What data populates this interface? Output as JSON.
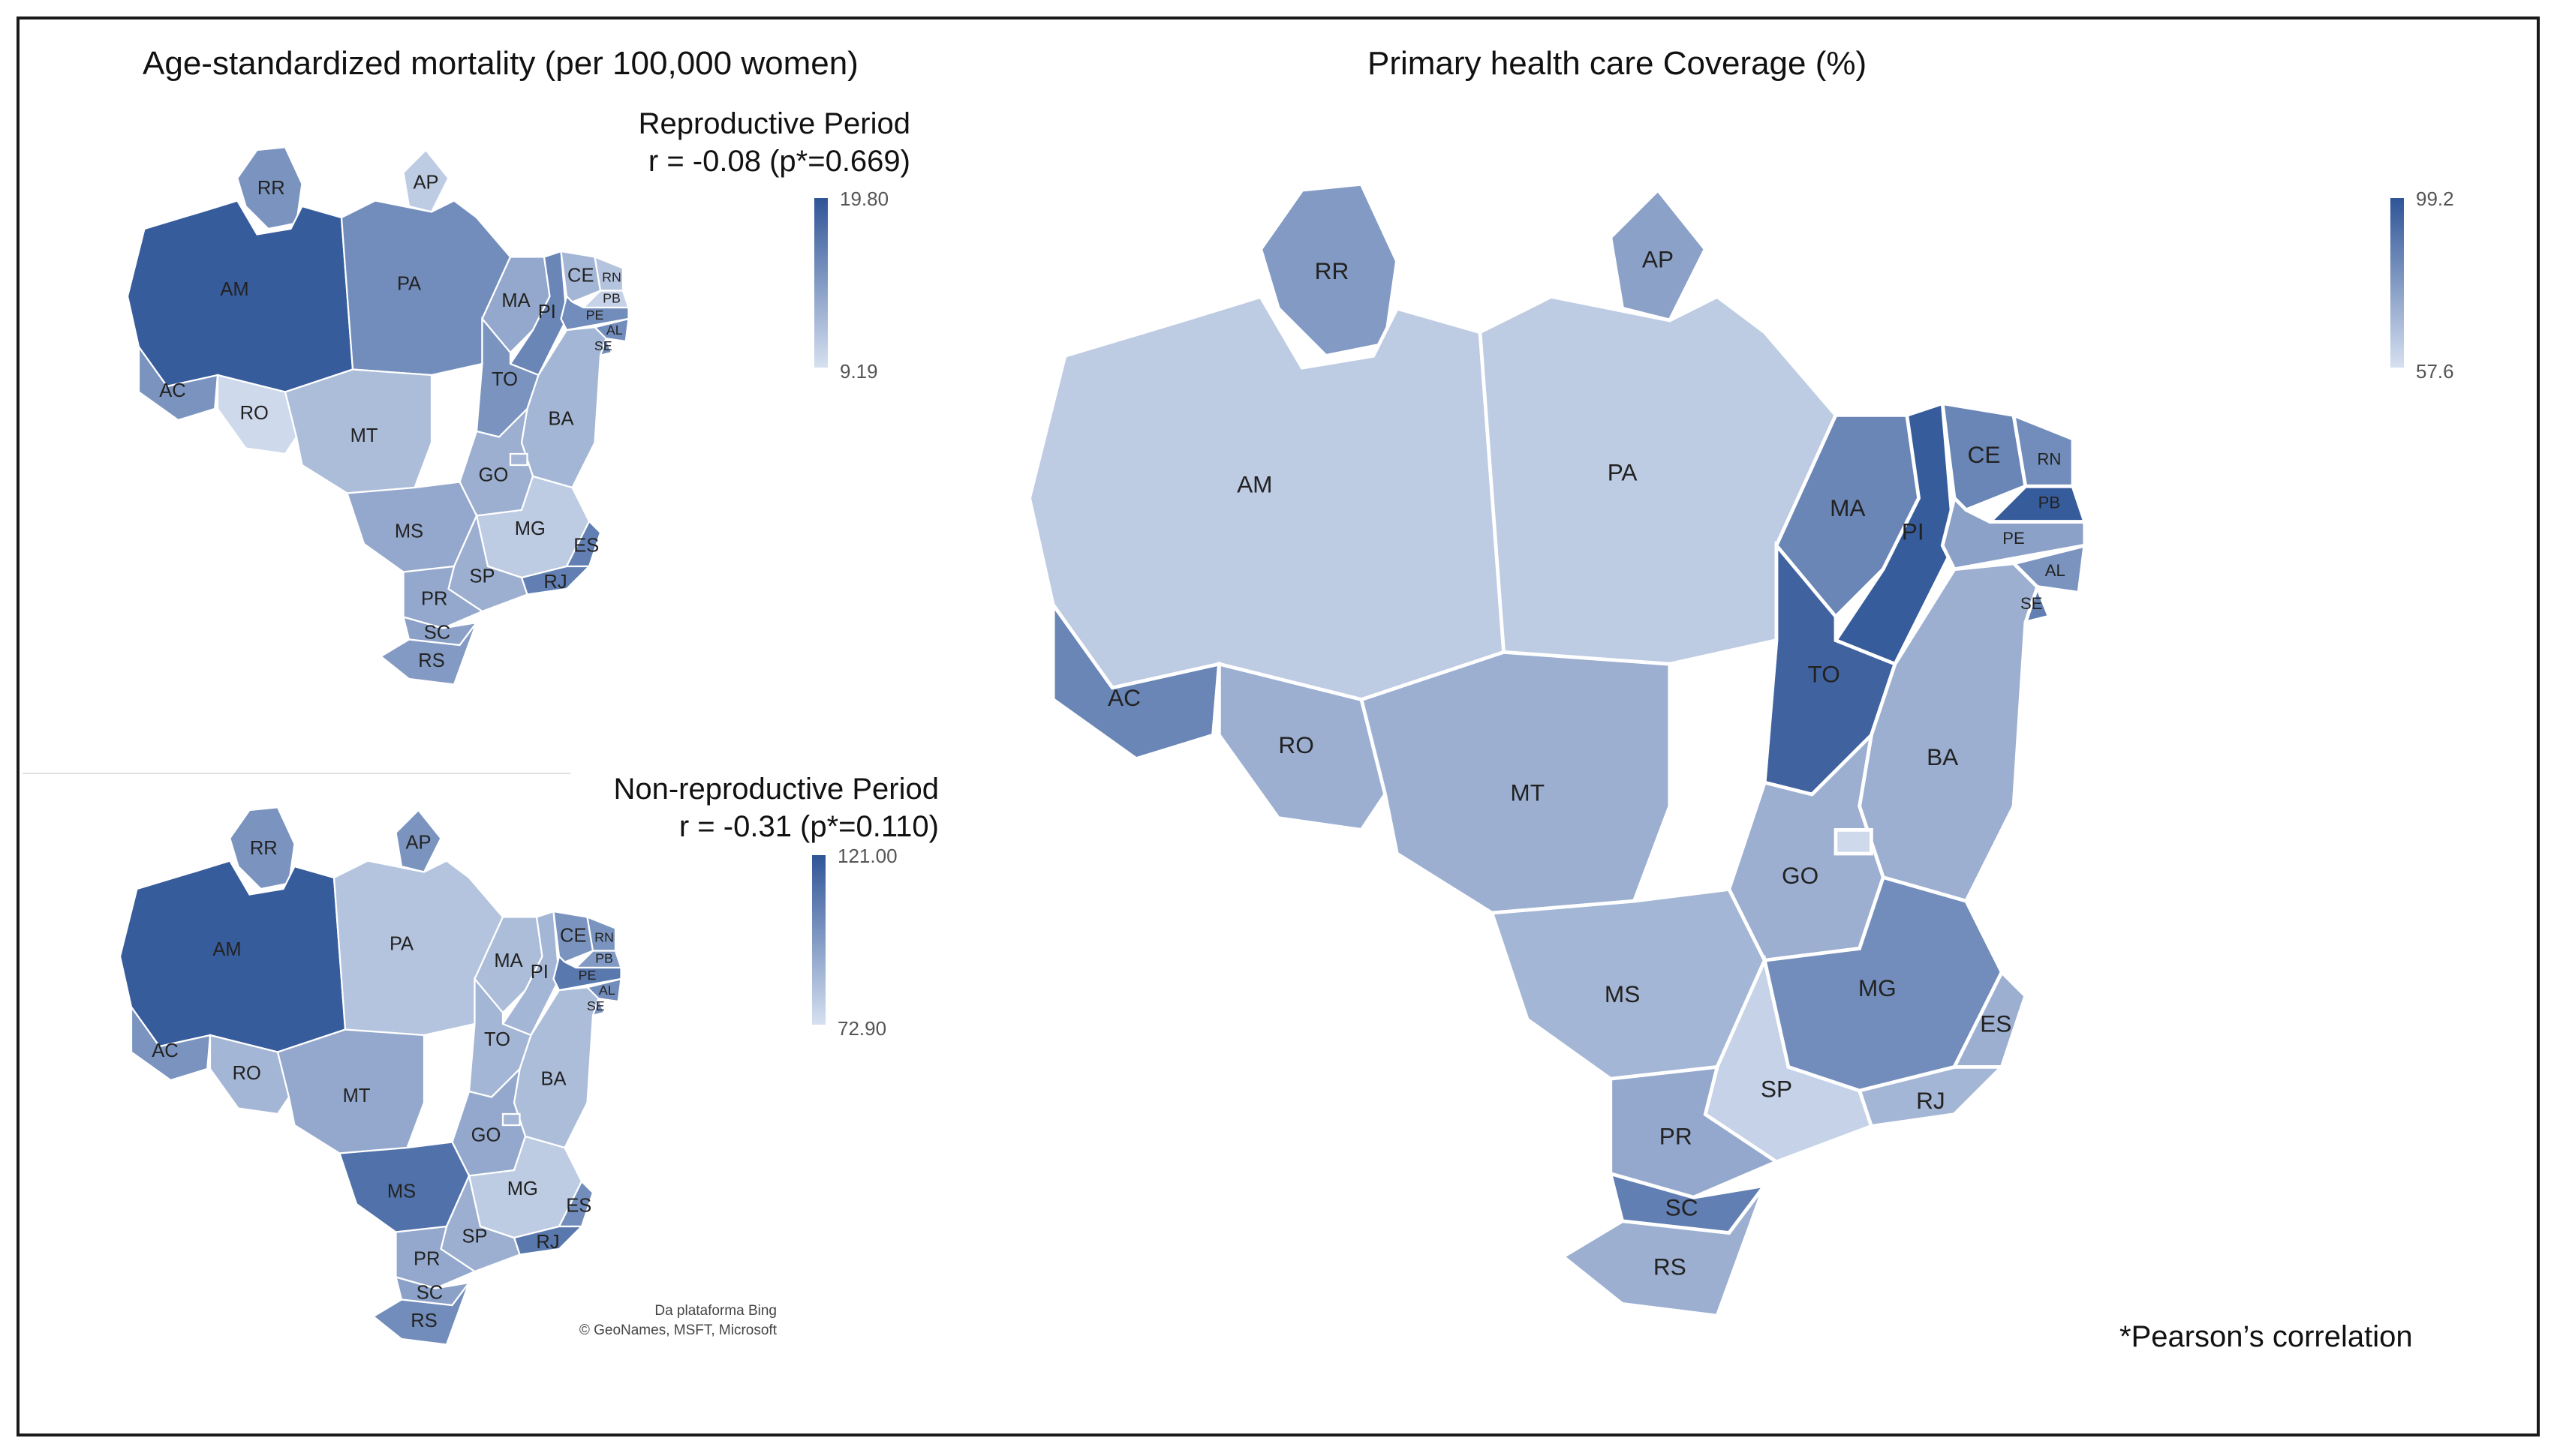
{
  "colors": {
    "light": "#d6e0f0",
    "dark": "#2f5597",
    "border": "#1a1a1a"
  },
  "mortality_title": "Age-standardized mortality (per 100,000 women)",
  "coverage_title": "Primary health care Coverage (%)",
  "reproductive": {
    "period": "Reproductive  Period",
    "stat": "r = -0.08 (p*=0.669)",
    "legend_max": "19.80",
    "legend_min": "9.19"
  },
  "nonreproductive": {
    "period": "Non-reproductive  Period",
    "stat": "r = -0.31 (p*=0.110)",
    "legend_max": "121.00",
    "legend_min": "72.90"
  },
  "coverage_legend": {
    "max": "99.2",
    "min": "57.6"
  },
  "footnote": "*Pearson’s correlation",
  "credit": {
    "line1": "Da plataforma Bing",
    "line2": "© GeoNames, MSFT, Microsoft"
  },
  "maps": {
    "reproductive": {
      "AM": 0.95,
      "RR": 0.55,
      "AP": 0.15,
      "PA": 0.6,
      "AC": 0.55,
      "RO": 0.05,
      "MT": 0.25,
      "TO": 0.55,
      "MA": 0.4,
      "PI": 0.65,
      "CE": 0.3,
      "RN": 0.2,
      "PB": 0.1,
      "PE": 0.6,
      "AL": 0.6,
      "SE": 0.6,
      "BA": 0.3,
      "GO": 0.35,
      "DF": 0.3,
      "MG": 0.15,
      "ES": 0.7,
      "RJ": 0.7,
      "SP": 0.35,
      "MS": 0.4,
      "PR": 0.4,
      "SC": 0.45,
      "RS": 0.5
    },
    "nonreproductive": {
      "AM": 0.95,
      "RR": 0.55,
      "AP": 0.55,
      "PA": 0.2,
      "AC": 0.55,
      "RO": 0.3,
      "MT": 0.4,
      "TO": 0.3,
      "MA": 0.25,
      "PI": 0.3,
      "CE": 0.55,
      "RN": 0.55,
      "PB": 0.5,
      "PE": 0.75,
      "AL": 0.6,
      "SE": 0.55,
      "BA": 0.25,
      "GO": 0.4,
      "DF": 0.3,
      "MG": 0.15,
      "ES": 0.6,
      "RJ": 0.75,
      "SP": 0.35,
      "MS": 0.8,
      "PR": 0.4,
      "SC": 0.45,
      "RS": 0.6
    },
    "coverage": {
      "AM": 0.15,
      "RR": 0.5,
      "AP": 0.45,
      "PA": 0.15,
      "AC": 0.65,
      "RO": 0.35,
      "MT": 0.35,
      "TO": 0.9,
      "MA": 0.65,
      "PI": 0.95,
      "CE": 0.65,
      "RN": 0.6,
      "PB": 0.95,
      "PE": 0.45,
      "AL": 0.55,
      "SE": 0.7,
      "BA": 0.35,
      "GO": 0.35,
      "DF": 0.05,
      "MG": 0.6,
      "ES": 0.35,
      "RJ": 0.3,
      "SP": 0.1,
      "MS": 0.3,
      "PR": 0.4,
      "SC": 0.7,
      "RS": 0.35
    }
  }
}
